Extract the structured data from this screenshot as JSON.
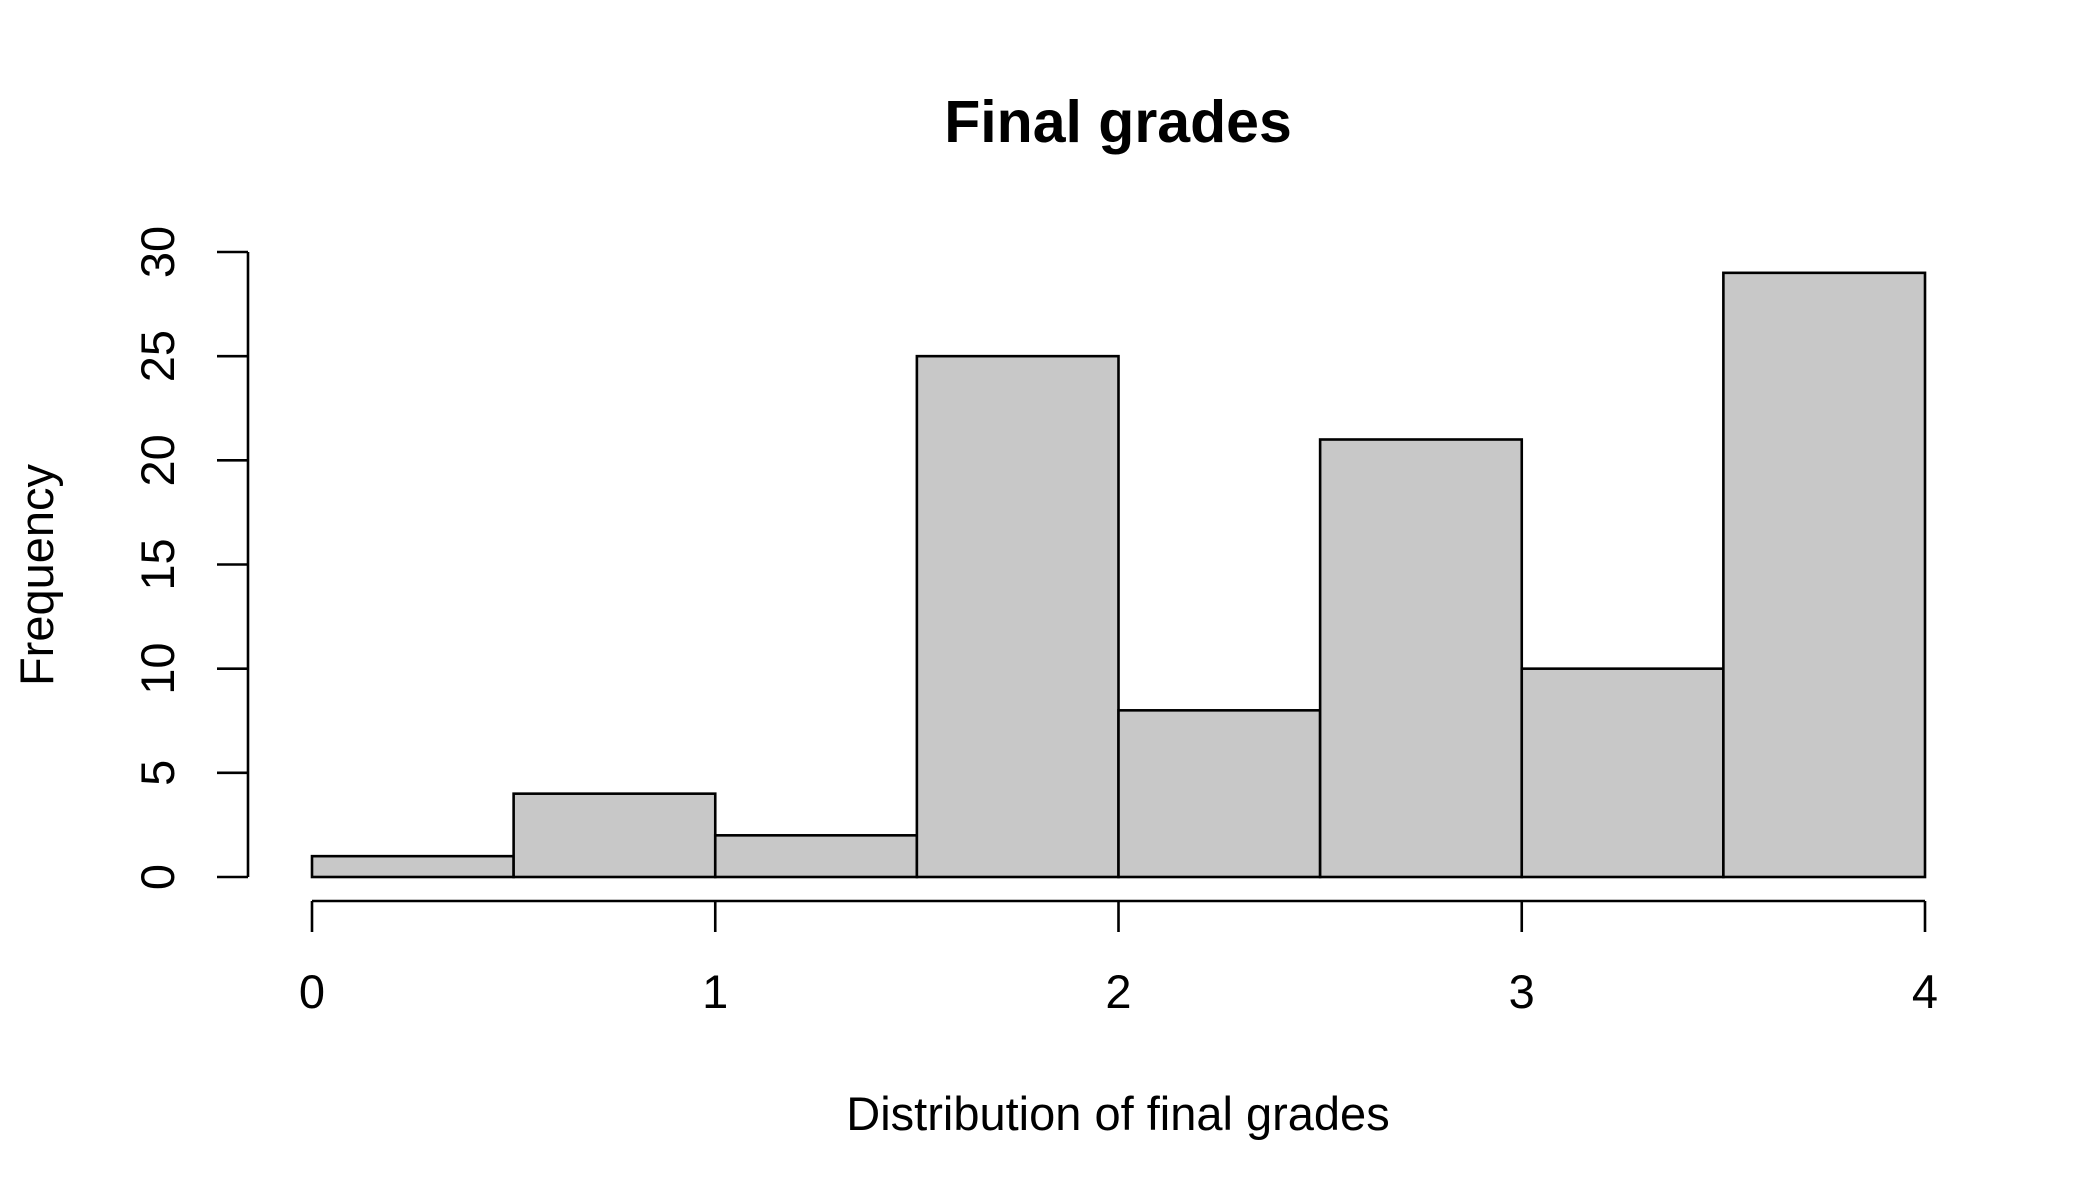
{
  "chart_data": {
    "type": "bar",
    "title": "Final grades",
    "xlabel": "Distribution of final grades",
    "ylabel": "Frequency",
    "bins": [
      {
        "start": 0.0,
        "end": 0.5,
        "count": 1
      },
      {
        "start": 0.5,
        "end": 1.0,
        "count": 4
      },
      {
        "start": 1.0,
        "end": 1.5,
        "count": 2
      },
      {
        "start": 1.5,
        "end": 2.0,
        "count": 25
      },
      {
        "start": 2.0,
        "end": 2.5,
        "count": 8
      },
      {
        "start": 2.5,
        "end": 3.0,
        "count": 21
      },
      {
        "start": 3.0,
        "end": 3.5,
        "count": 10
      },
      {
        "start": 3.5,
        "end": 4.0,
        "count": 29
      }
    ],
    "xlim": [
      0,
      4
    ],
    "ylim": [
      0,
      30
    ],
    "x_ticks": [
      0,
      1,
      2,
      3,
      4
    ],
    "y_ticks": [
      0,
      5,
      10,
      15,
      20,
      25,
      30
    ],
    "grid": false,
    "bar_color": "#c8c8c8",
    "edge_color": "#000000"
  }
}
